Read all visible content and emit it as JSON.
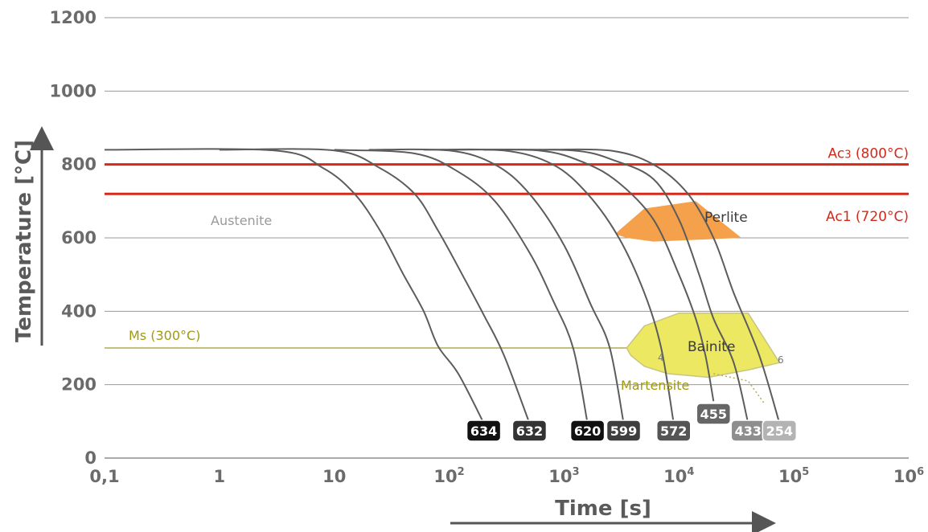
{
  "chart_data": {
    "type": "line",
    "xlabel": "Time [s]",
    "ylabel": "Temperature [°C]",
    "x_scale": "log",
    "xlim": [
      0.1,
      1000000
    ],
    "ylim": [
      0,
      1200
    ],
    "x_ticks": [
      {
        "value": 0.1,
        "base": "0,1",
        "sup": ""
      },
      {
        "value": 1,
        "base": "1",
        "sup": ""
      },
      {
        "value": 10,
        "base": "10",
        "sup": ""
      },
      {
        "value": 100,
        "base": "10",
        "sup": "2"
      },
      {
        "value": 1000,
        "base": "10",
        "sup": "3"
      },
      {
        "value": 10000,
        "base": "10",
        "sup": "4"
      },
      {
        "value": 100000,
        "base": "10",
        "sup": "5"
      },
      {
        "value": 1000000,
        "base": "10",
        "sup": "6"
      }
    ],
    "y_ticks": [
      0,
      200,
      400,
      600,
      800,
      1000,
      1200
    ],
    "grid": true,
    "reference_lines": [
      {
        "label": "Ac3 (800°C)",
        "label_base": "Ac",
        "label_sub": "3",
        "label_rest": " (800°C)",
        "value": 800,
        "color": "#d42a1a"
      },
      {
        "label": "Ac1 (720°C)",
        "value": 720,
        "color": "#d42a1a"
      }
    ],
    "ms_line": {
      "label": "Ms (300°C)",
      "value": 300,
      "x_end": 3500,
      "color": "#c4bf7c"
    },
    "regions": [
      {
        "name": "Austenite",
        "color": "#9a9a9a"
      },
      {
        "name": "Perlite",
        "color": "#f5a04a",
        "boundary": [
          [
            3000,
            620
          ],
          [
            5000,
            680
          ],
          [
            14000,
            700
          ],
          [
            35000,
            600
          ],
          [
            25000,
            598
          ],
          [
            6000,
            590
          ],
          [
            3500,
            600
          ],
          [
            2800,
            610
          ]
        ]
      },
      {
        "name": "Bainite",
        "color": "#ece862",
        "boundary": [
          [
            3500,
            300
          ],
          [
            5000,
            360
          ],
          [
            10000,
            395
          ],
          [
            40000,
            395
          ],
          [
            75000,
            260
          ],
          [
            40000,
            240
          ],
          [
            18000,
            220
          ],
          [
            8000,
            230
          ],
          [
            5000,
            250
          ],
          [
            3800,
            280
          ]
        ]
      },
      {
        "name": "Martensite",
        "color": "#a09a10"
      }
    ],
    "region_marks": [
      "4",
      "6"
    ],
    "series": [
      {
        "label": "634",
        "badge_color": "#111111",
        "points": [
          [
            0.1,
            840
          ],
          [
            3,
            838
          ],
          [
            8,
            790
          ],
          [
            15,
            720
          ],
          [
            25,
            620
          ],
          [
            40,
            500
          ],
          [
            60,
            400
          ],
          [
            80,
            305
          ],
          [
            120,
            230
          ],
          [
            200,
            95
          ]
        ]
      },
      {
        "label": "632",
        "badge_color": "#333333",
        "points": [
          [
            1,
            840
          ],
          [
            10,
            838
          ],
          [
            25,
            790
          ],
          [
            50,
            720
          ],
          [
            80,
            620
          ],
          [
            130,
            500
          ],
          [
            200,
            390
          ],
          [
            300,
            280
          ],
          [
            500,
            95
          ]
        ]
      },
      {
        "label": "620",
        "badge_color": "#111111",
        "points": [
          [
            10,
            840
          ],
          [
            50,
            830
          ],
          [
            120,
            780
          ],
          [
            250,
            700
          ],
          [
            500,
            560
          ],
          [
            800,
            430
          ],
          [
            1200,
            300
          ],
          [
            1600,
            95
          ]
        ]
      },
      {
        "label": "599",
        "badge_color": "#3f3f3f",
        "points": [
          [
            20,
            840
          ],
          [
            100,
            838
          ],
          [
            250,
            800
          ],
          [
            500,
            720
          ],
          [
            1000,
            580
          ],
          [
            1700,
            420
          ],
          [
            2500,
            300
          ],
          [
            3300,
            95
          ]
        ]
      },
      {
        "label": "572",
        "badge_color": "#555555",
        "points": [
          [
            60,
            840
          ],
          [
            300,
            838
          ],
          [
            800,
            800
          ],
          [
            1600,
            720
          ],
          [
            3000,
            600
          ],
          [
            5000,
            450
          ],
          [
            7000,
            300
          ],
          [
            9000,
            95
          ]
        ]
      },
      {
        "label": "455",
        "badge_color": "#666666",
        "points": [
          [
            100,
            840
          ],
          [
            600,
            838
          ],
          [
            1500,
            805
          ],
          [
            3000,
            750
          ],
          [
            6000,
            650
          ],
          [
            10000,
            500
          ],
          [
            14000,
            380
          ],
          [
            17000,
            280
          ],
          [
            20000,
            155
          ]
        ]
      },
      {
        "label": "433",
        "badge_color": "#8e8e8e",
        "points": [
          [
            200,
            840
          ],
          [
            1200,
            838
          ],
          [
            2800,
            810
          ],
          [
            6000,
            760
          ],
          [
            10000,
            650
          ],
          [
            15000,
            500
          ],
          [
            20000,
            380
          ],
          [
            30000,
            260
          ],
          [
            40000,
            95
          ]
        ]
      },
      {
        "label": "254",
        "badge_color": "#b3b3b3",
        "points": [
          [
            600,
            840
          ],
          [
            2500,
            838
          ],
          [
            6000,
            800
          ],
          [
            12000,
            720
          ],
          [
            20000,
            600
          ],
          [
            30000,
            450
          ],
          [
            50000,
            280
          ],
          [
            75000,
            95
          ]
        ]
      }
    ]
  }
}
